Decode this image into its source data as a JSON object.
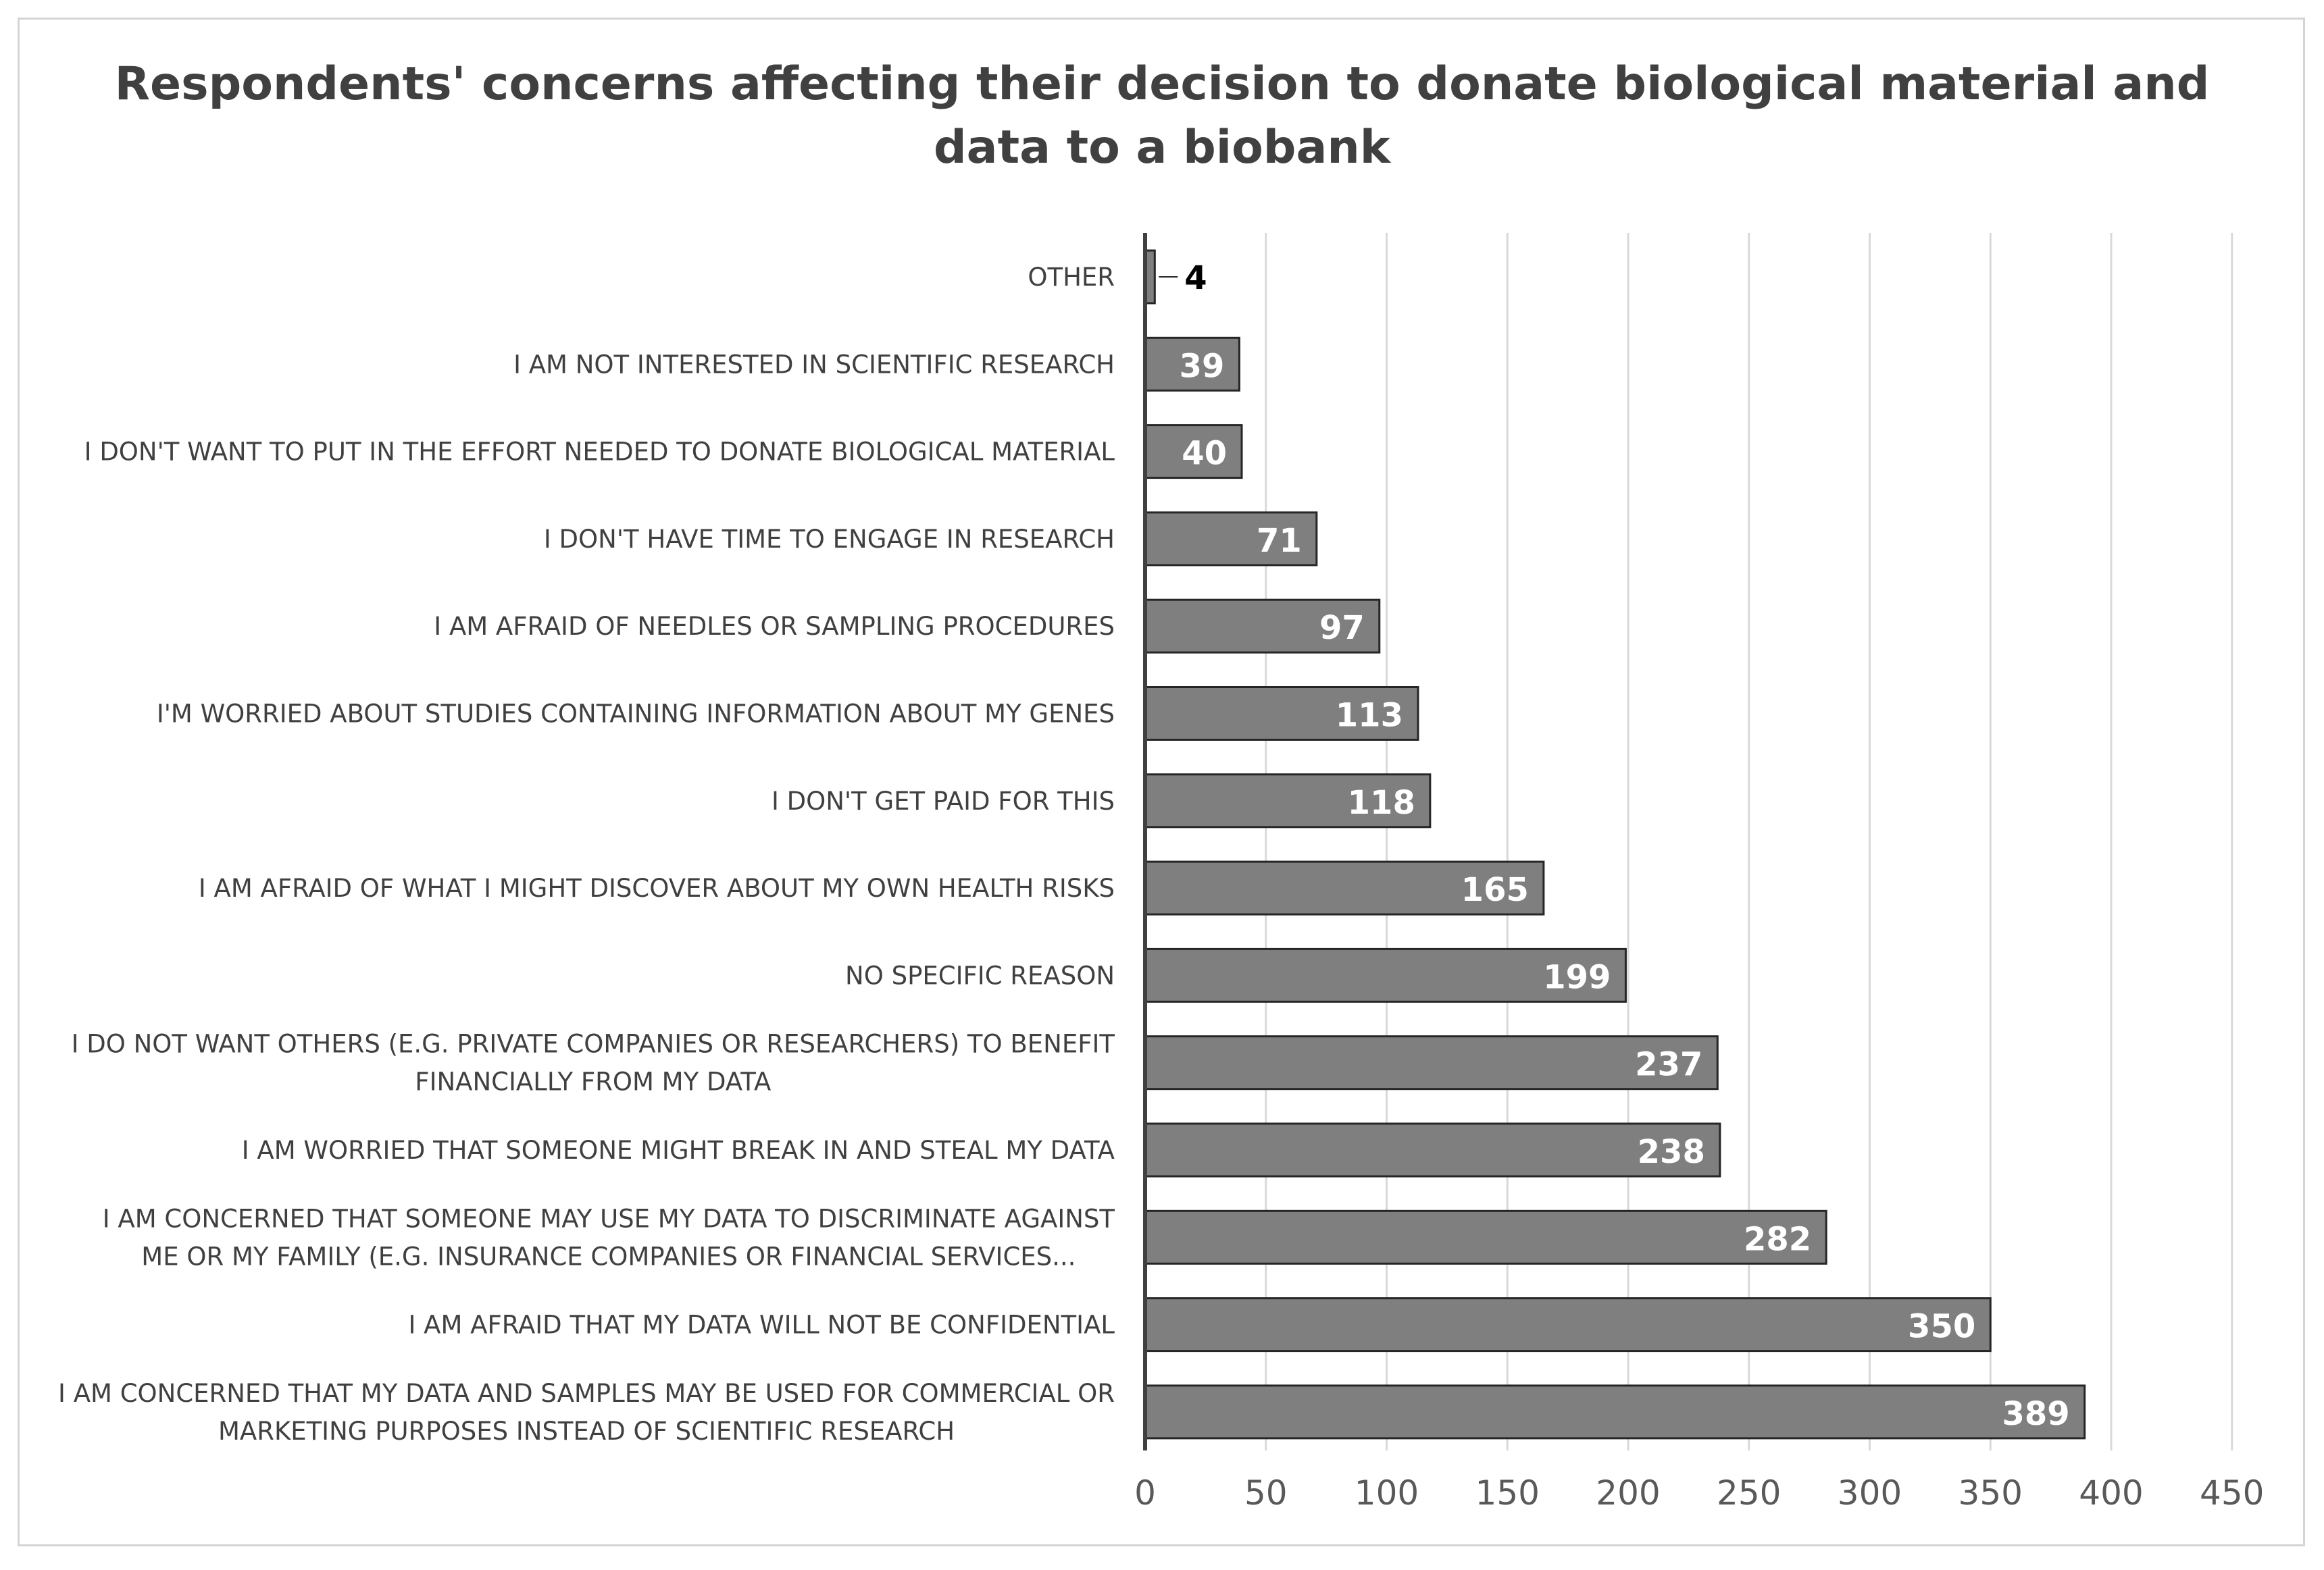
{
  "chart_data": {
    "type": "bar",
    "orientation": "horizontal",
    "title": "Respondents' concerns affecting their decision to donate biological material and data to a biobank",
    "title_lines": [
      "Respondents' concerns affecting their decision to donate biological material and",
      "data to a biobank"
    ],
    "categories": [
      [
        "OTHER"
      ],
      [
        "I AM NOT INTERESTED IN SCIENTIFIC RESEARCH"
      ],
      [
        "I DON'T WANT TO PUT IN THE EFFORT NEEDED TO DONATE BIOLOGICAL MATERIAL"
      ],
      [
        "I DON'T HAVE TIME TO ENGAGE IN RESEARCH"
      ],
      [
        "I AM AFRAID OF NEEDLES OR SAMPLING PROCEDURES"
      ],
      [
        "I'M WORRIED ABOUT STUDIES CONTAINING INFORMATION ABOUT MY GENES"
      ],
      [
        "I DON'T GET PAID FOR THIS"
      ],
      [
        "I AM AFRAID OF WHAT I MIGHT DISCOVER ABOUT MY OWN HEALTH RISKS"
      ],
      [
        "NO SPECIFIC REASON"
      ],
      [
        "I DO NOT WANT OTHERS (E.G. PRIVATE COMPANIES OR RESEARCHERS) TO BENEFIT",
        "FINANCIALLY FROM MY DATA"
      ],
      [
        "I AM WORRIED THAT SOMEONE MIGHT BREAK IN AND STEAL MY DATA"
      ],
      [
        "I AM CONCERNED THAT SOMEONE MAY USE MY DATA TO DISCRIMINATE AGAINST",
        "ME OR MY FAMILY (E.G. INSURANCE COMPANIES OR FINANCIAL SERVICES..."
      ],
      [
        "I AM AFRAID THAT MY DATA WILL NOT BE CONFIDENTIAL"
      ],
      [
        "I AM CONCERNED THAT MY DATA AND SAMPLES MAY BE USED FOR COMMERCIAL OR",
        "MARKETING PURPOSES INSTEAD OF SCIENTIFIC RESEARCH"
      ]
    ],
    "values": [
      4,
      39,
      40,
      71,
      97,
      113,
      118,
      165,
      199,
      237,
      238,
      282,
      350,
      389
    ],
    "data_labels": [
      "4",
      "39",
      "40",
      "71",
      "97",
      "113",
      "118",
      "165",
      "199",
      "237",
      "238",
      "282",
      "350",
      "389"
    ],
    "xlim": [
      0,
      450
    ],
    "xticks": [
      "0",
      "50",
      "100",
      "150",
      "200",
      "250",
      "300",
      "350",
      "400",
      "450"
    ],
    "grid": "vertical",
    "legend": "none",
    "xlabel": "",
    "ylabel": "",
    "colors": {
      "bar_fill": "#7f7f7f",
      "bar_stroke": "#262626",
      "label_inside": "#ffffff",
      "label_outside": "#000000",
      "gridline": "#d9d9d9",
      "axis": "#404040",
      "text": "#404040",
      "ticks": "#595959"
    }
  }
}
